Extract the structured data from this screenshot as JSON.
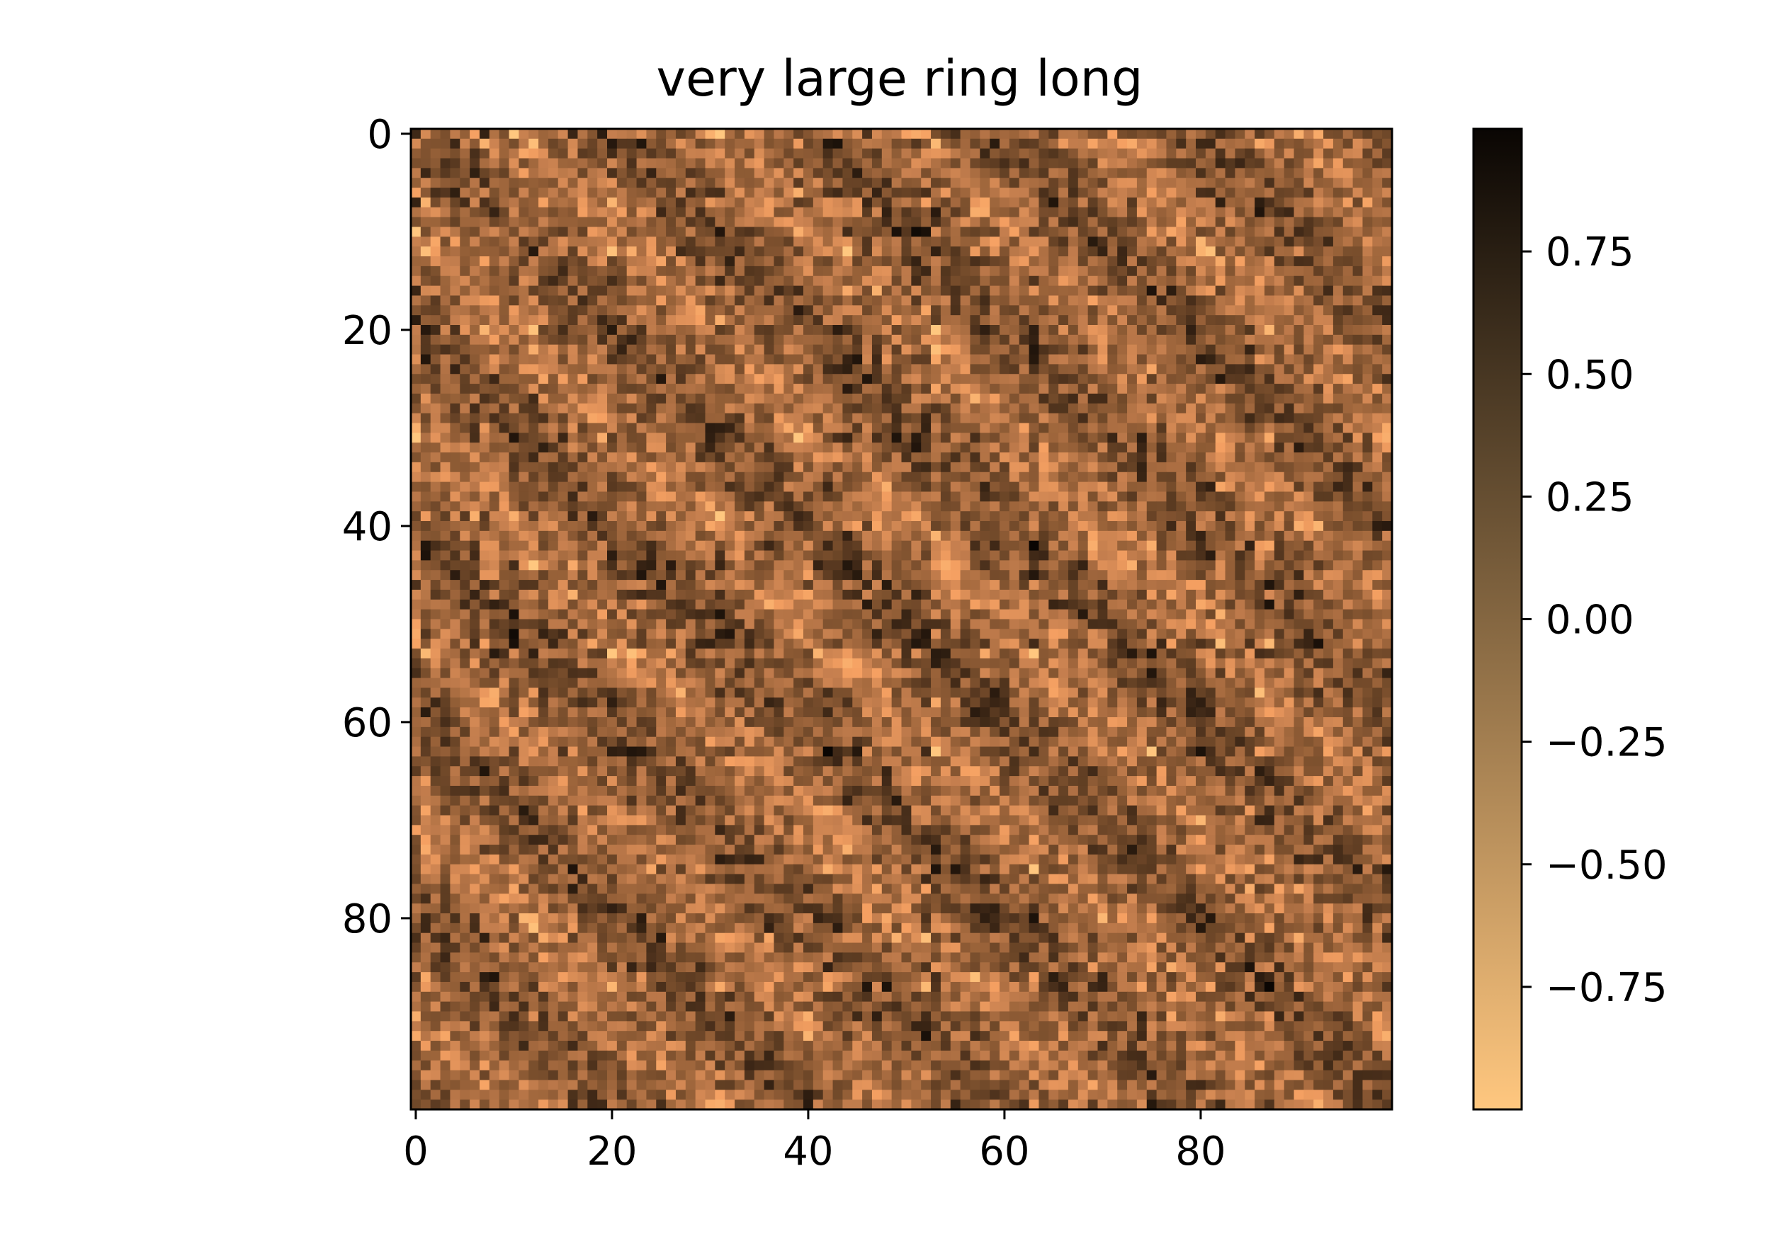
{
  "chart_data": {
    "type": "heatmap",
    "title": "very large ring long",
    "xlabel": "",
    "ylabel": "",
    "rows": 100,
    "cols": 100,
    "xlim": [
      -0.5,
      99.5
    ],
    "ylim": [
      99.5,
      -0.5
    ],
    "x_ticks": [
      0,
      20,
      40,
      60,
      80
    ],
    "x_tick_labels": [
      "0",
      "20",
      "40",
      "60",
      "80"
    ],
    "y_ticks": [
      0,
      20,
      40,
      60,
      80
    ],
    "y_tick_labels": [
      "0",
      "20",
      "40",
      "60",
      "80"
    ],
    "colormap": "copper_r",
    "colormap_stops": [
      "#ffc77f",
      "#f5a062",
      "#c7804f",
      "#996239",
      "#6b4527",
      "#3d2716",
      "#0a0603"
    ],
    "colorbar": {
      "vmin": -1.0,
      "vmax": 1.0,
      "ticks": [
        0.75,
        0.5,
        0.25,
        0.0,
        -0.25,
        -0.5,
        -0.75
      ],
      "tick_labels": [
        "0.75",
        "0.50",
        "0.25",
        "0.00",
        "−0.25",
        "−0.50",
        "−0.75"
      ]
    },
    "pattern": "symmetric ring-pairwise correlation matrix, values in [-1, 1]",
    "grid": false
  }
}
